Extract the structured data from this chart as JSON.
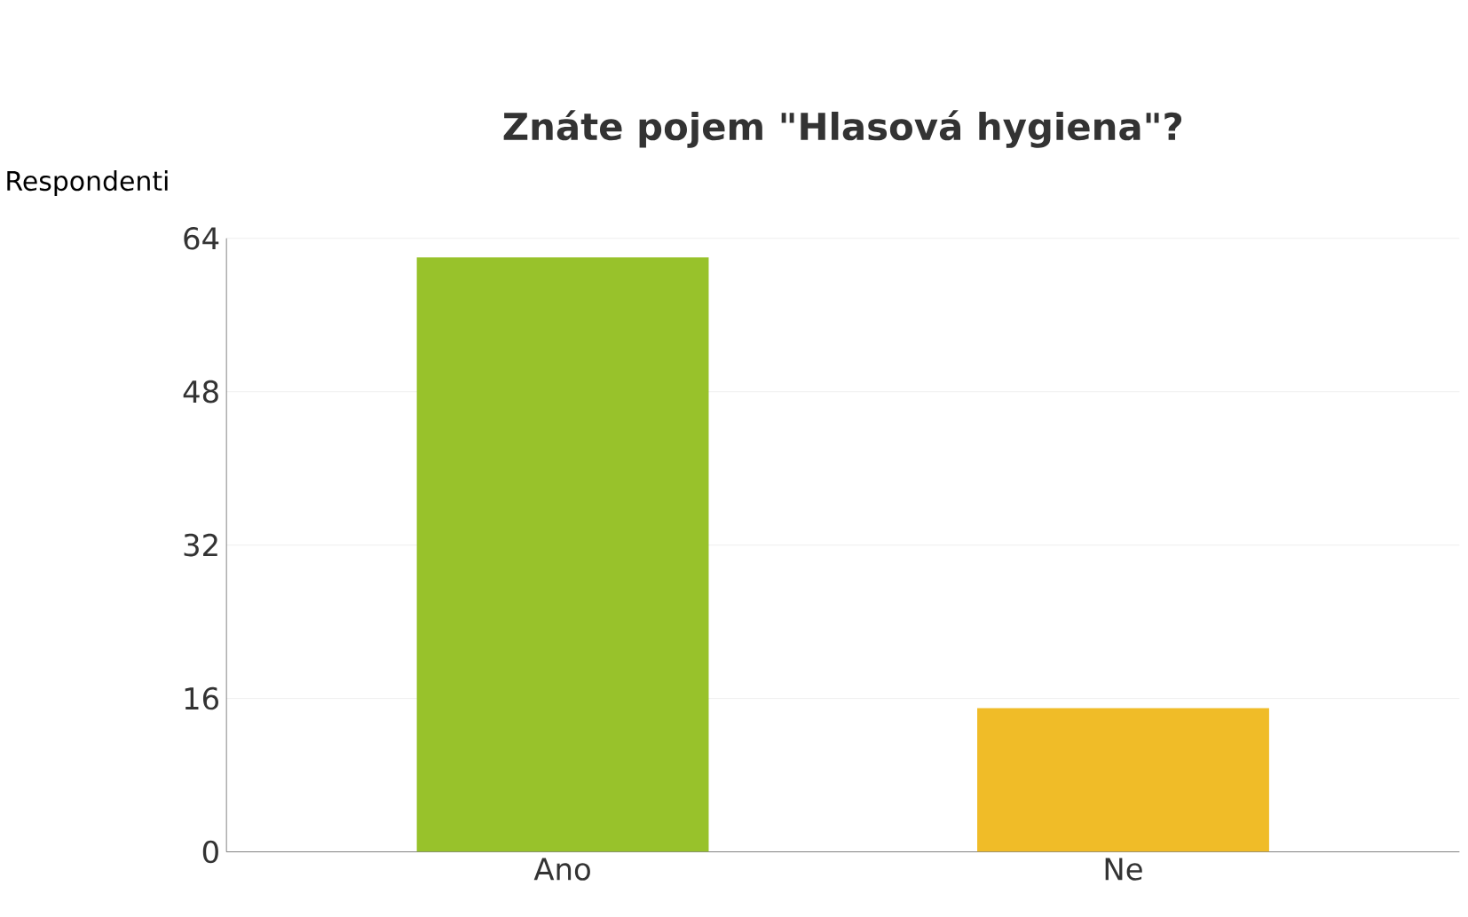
{
  "chart_data": {
    "type": "bar",
    "title": "Znáte pojem \"Hlasová hygiena\"?",
    "ylabel": "Respondenti",
    "categories": [
      "Ano",
      "Ne"
    ],
    "values": [
      62,
      15
    ],
    "colors": [
      "#98c22b",
      "#f0bc28"
    ],
    "ylim": [
      0,
      64
    ],
    "yticks": [
      0,
      16,
      32,
      48,
      64
    ],
    "grid": "y"
  }
}
